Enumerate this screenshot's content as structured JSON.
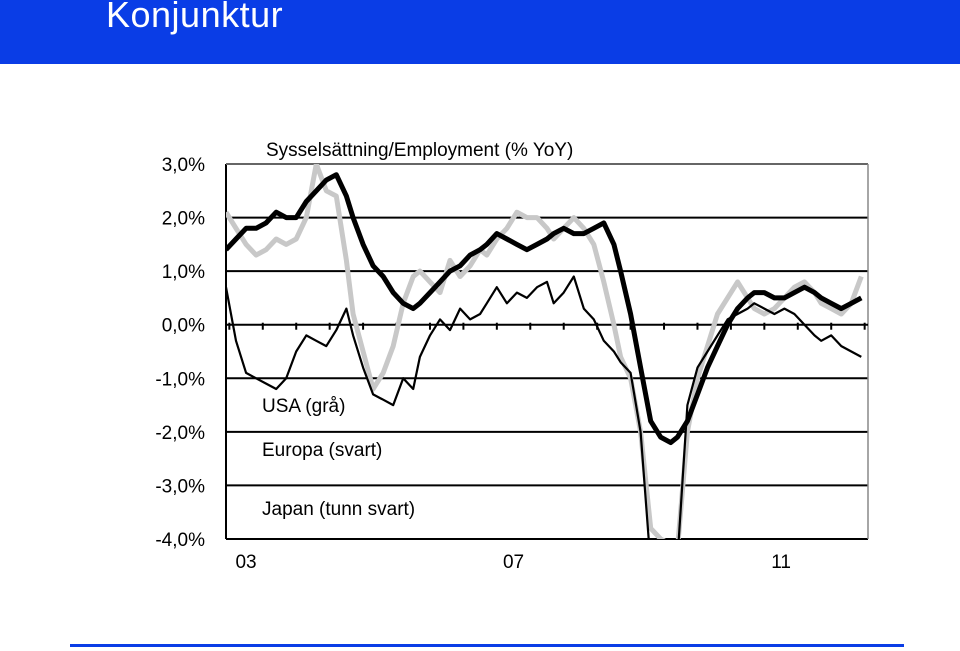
{
  "header": {
    "title": "Konjunktur"
  },
  "colors": {
    "header_bg": "#0a3de6",
    "footer_rule": "#0a3de6"
  },
  "chart_data": {
    "type": "line",
    "title": "Sysselsättning/Employment (% YoY)",
    "xlabel": "",
    "ylabel": "",
    "xlim": [
      2002.7,
      2012.3
    ],
    "ylim": [
      -4.0,
      3.0
    ],
    "grid": "horizontal",
    "y_ticks": [
      "3,0%",
      "2,0%",
      "1,0%",
      "0,0%",
      "-1,0%",
      "-2,0%",
      "-3,0%",
      "-4,0%"
    ],
    "y_tick_values": [
      3,
      2,
      1,
      0,
      -1,
      -2,
      -3,
      -4
    ],
    "x_ticks": [
      "03",
      "07",
      "11"
    ],
    "x_tick_values": [
      2003,
      2007,
      2011
    ],
    "legend": [
      "USA (grå)",
      "Europa (svart)",
      "Japan (tunn svart)"
    ],
    "series": [
      {
        "name": "USA (grå)",
        "color": "#c8c8c8",
        "x": [
          2002.7,
          2002.85,
          2003.0,
          2003.15,
          2003.3,
          2003.45,
          2003.6,
          2003.75,
          2003.9,
          2004.05,
          2004.2,
          2004.35,
          2004.5,
          2004.6,
          2004.75,
          2004.9,
          2005.05,
          2005.2,
          2005.35,
          2005.5,
          2005.6,
          2005.75,
          2005.9,
          2006.05,
          2006.2,
          2006.35,
          2006.5,
          2006.6,
          2006.75,
          2006.9,
          2007.05,
          2007.2,
          2007.35,
          2007.5,
          2007.6,
          2007.75,
          2007.9,
          2008.05,
          2008.2,
          2008.35,
          2008.5,
          2008.6,
          2008.75,
          2008.9,
          2009.05,
          2009.2,
          2009.35,
          2009.45,
          2009.6,
          2009.75,
          2009.9,
          2010.05,
          2010.2,
          2010.35,
          2010.5,
          2010.6,
          2010.75,
          2010.9,
          2011.05,
          2011.2,
          2011.35,
          2011.5,
          2011.6,
          2011.75,
          2011.9,
          2012.05,
          2012.2
        ],
        "values": [
          2.1,
          1.8,
          1.5,
          1.3,
          1.4,
          1.6,
          1.5,
          1.6,
          2.0,
          3.0,
          2.5,
          2.4,
          1.2,
          0.2,
          -0.5,
          -1.2,
          -0.9,
          -0.4,
          0.4,
          0.9,
          1.0,
          0.8,
          0.6,
          1.2,
          0.9,
          1.1,
          1.4,
          1.3,
          1.6,
          1.8,
          2.1,
          2.0,
          2.0,
          1.8,
          1.6,
          1.8,
          2.0,
          1.8,
          1.5,
          0.8,
          0.0,
          -0.6,
          -1.0,
          -2.0,
          -3.8,
          -4.0,
          -4.1,
          -4.2,
          -2.0,
          -1.0,
          -0.4,
          0.2,
          0.5,
          0.8,
          0.5,
          0.3,
          0.2,
          0.3,
          0.5,
          0.7,
          0.8,
          0.6,
          0.4,
          0.3,
          0.2,
          0.4,
          0.9
        ]
      },
      {
        "name": "Europa (svart)",
        "color": "#000000",
        "x": [
          2002.7,
          2002.85,
          2003.0,
          2003.15,
          2003.3,
          2003.45,
          2003.6,
          2003.75,
          2003.9,
          2004.05,
          2004.2,
          2004.35,
          2004.5,
          2004.6,
          2004.75,
          2004.9,
          2005.05,
          2005.2,
          2005.35,
          2005.5,
          2005.6,
          2005.75,
          2005.9,
          2006.05,
          2006.2,
          2006.35,
          2006.5,
          2006.6,
          2006.75,
          2006.9,
          2007.05,
          2007.2,
          2007.35,
          2007.5,
          2007.6,
          2007.75,
          2007.9,
          2008.05,
          2008.2,
          2008.35,
          2008.5,
          2008.6,
          2008.75,
          2008.9,
          2009.05,
          2009.2,
          2009.35,
          2009.45,
          2009.6,
          2009.75,
          2009.9,
          2010.05,
          2010.2,
          2010.35,
          2010.5,
          2010.6,
          2010.75,
          2010.9,
          2011.05,
          2011.2,
          2011.35,
          2011.5,
          2011.6,
          2011.75,
          2011.9,
          2012.05,
          2012.2
        ],
        "values": [
          1.4,
          1.6,
          1.8,
          1.8,
          1.9,
          2.1,
          2.0,
          2.0,
          2.3,
          2.5,
          2.7,
          2.8,
          2.4,
          2.0,
          1.5,
          1.1,
          0.9,
          0.6,
          0.4,
          0.3,
          0.4,
          0.6,
          0.8,
          1.0,
          1.1,
          1.3,
          1.4,
          1.5,
          1.7,
          1.6,
          1.5,
          1.4,
          1.5,
          1.6,
          1.7,
          1.8,
          1.7,
          1.7,
          1.8,
          1.9,
          1.5,
          1.0,
          0.2,
          -0.8,
          -1.8,
          -2.1,
          -2.2,
          -2.1,
          -1.8,
          -1.3,
          -0.8,
          -0.4,
          0.0,
          0.3,
          0.5,
          0.6,
          0.6,
          0.5,
          0.5,
          0.6,
          0.7,
          0.6,
          0.5,
          0.4,
          0.3,
          0.4,
          0.5
        ]
      },
      {
        "name": "Japan (tunn svart)",
        "color": "#000000",
        "x": [
          2002.7,
          2002.85,
          2003.0,
          2003.15,
          2003.3,
          2003.45,
          2003.6,
          2003.75,
          2003.9,
          2004.05,
          2004.2,
          2004.35,
          2004.5,
          2004.6,
          2004.75,
          2004.9,
          2005.05,
          2005.2,
          2005.35,
          2005.5,
          2005.6,
          2005.75,
          2005.9,
          2006.05,
          2006.2,
          2006.35,
          2006.5,
          2006.6,
          2006.75,
          2006.9,
          2007.05,
          2007.2,
          2007.35,
          2007.5,
          2007.6,
          2007.75,
          2007.9,
          2008.05,
          2008.2,
          2008.35,
          2008.5,
          2008.6,
          2008.75,
          2008.9,
          2009.05,
          2009.2,
          2009.35,
          2009.45,
          2009.6,
          2009.75,
          2009.9,
          2010.05,
          2010.2,
          2010.35,
          2010.5,
          2010.6,
          2010.75,
          2010.9,
          2011.05,
          2011.2,
          2011.35,
          2011.5,
          2011.6,
          2011.75,
          2011.9,
          2012.05,
          2012.2
        ],
        "values": [
          0.7,
          -0.3,
          -0.9,
          -1.0,
          -1.1,
          -1.2,
          -1.0,
          -0.5,
          -0.2,
          -0.3,
          -0.4,
          -0.1,
          0.3,
          -0.2,
          -0.8,
          -1.3,
          -1.4,
          -1.5,
          -1.0,
          -1.2,
          -0.6,
          -0.2,
          0.1,
          -0.1,
          0.3,
          0.1,
          0.2,
          0.4,
          0.7,
          0.4,
          0.6,
          0.5,
          0.7,
          0.8,
          0.4,
          0.6,
          0.9,
          0.3,
          0.1,
          -0.3,
          -0.5,
          -0.7,
          -0.9,
          -2.0,
          -4.5,
          -4.6,
          -4.5,
          -4.4,
          -1.5,
          -0.8,
          -0.5,
          -0.2,
          0.1,
          0.2,
          0.3,
          0.4,
          0.3,
          0.2,
          0.3,
          0.2,
          0.0,
          -0.2,
          -0.3,
          -0.2,
          -0.4,
          -0.5,
          -0.6
        ]
      }
    ]
  }
}
